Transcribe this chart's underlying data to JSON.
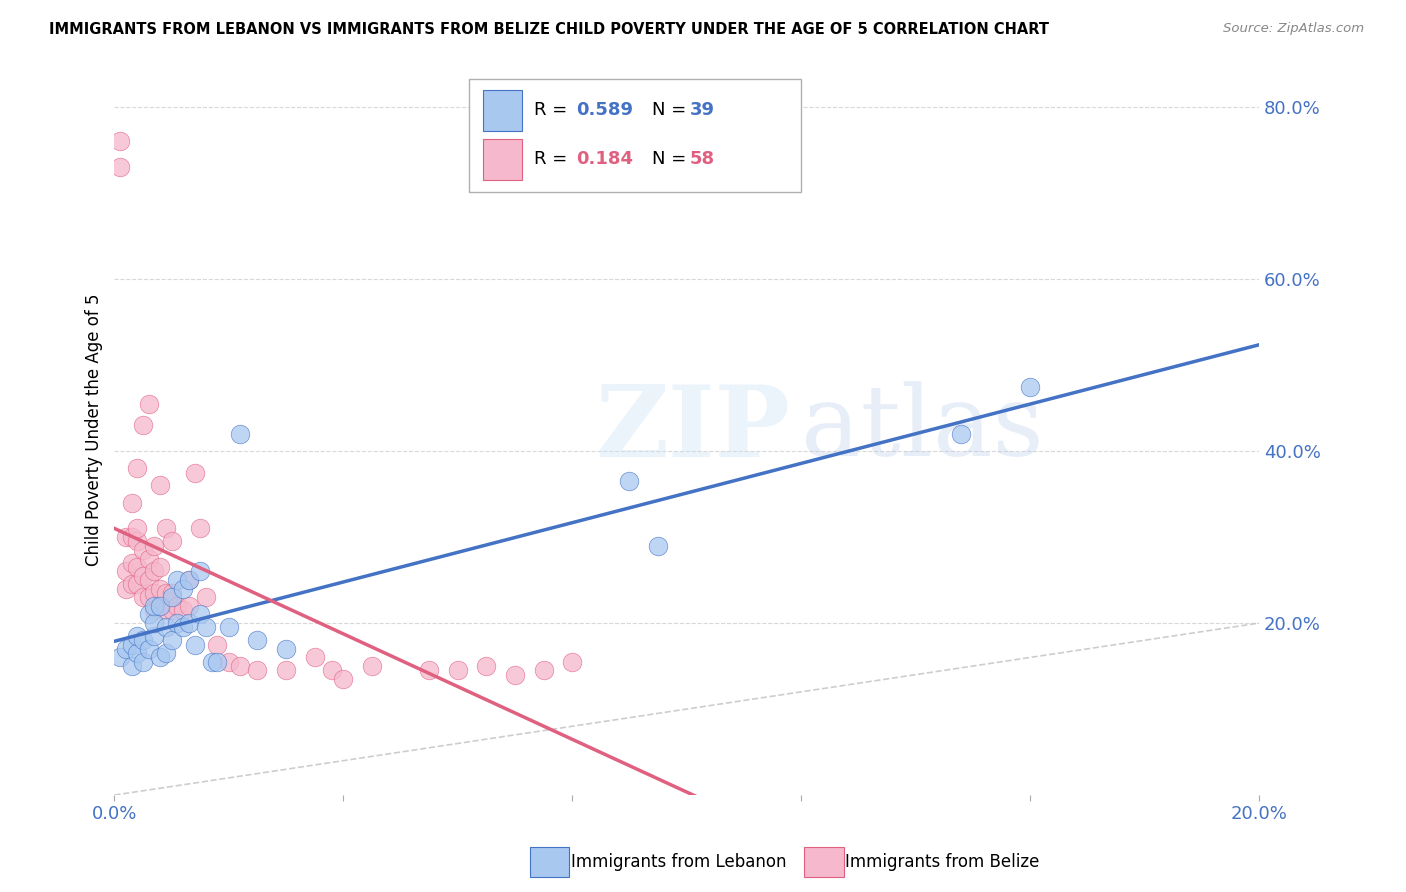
{
  "title": "IMMIGRANTS FROM LEBANON VS IMMIGRANTS FROM BELIZE CHILD POVERTY UNDER THE AGE OF 5 CORRELATION CHART",
  "source": "Source: ZipAtlas.com",
  "ylabel": "Child Poverty Under the Age of 5",
  "xlim": [
    0,
    0.2
  ],
  "ylim": [
    0,
    0.85
  ],
  "xticks": [
    0.0,
    0.04,
    0.08,
    0.12,
    0.16,
    0.2
  ],
  "yticks": [
    0.2,
    0.4,
    0.6,
    0.8
  ],
  "ytick_labels": [
    "20.0%",
    "40.0%",
    "60.0%",
    "80.0%"
  ],
  "xtick_labels": [
    "0.0%",
    "",
    "",
    "",
    "",
    "20.0%"
  ],
  "color_lebanon": "#a8c8f0",
  "color_belize": "#f5b8cc",
  "color_lebanon_line": "#4472c4",
  "color_belize_line": "#e06080",
  "color_diagonal": "#c8c8c8",
  "background": "#ffffff",
  "watermark": "ZIPatlas",
  "lebanon_x": [
    0.001,
    0.002,
    0.003,
    0.003,
    0.004,
    0.004,
    0.005,
    0.005,
    0.006,
    0.006,
    0.007,
    0.007,
    0.007,
    0.008,
    0.008,
    0.009,
    0.009,
    0.01,
    0.01,
    0.011,
    0.011,
    0.012,
    0.012,
    0.013,
    0.013,
    0.014,
    0.015,
    0.015,
    0.016,
    0.017,
    0.018,
    0.02,
    0.022,
    0.025,
    0.03,
    0.09,
    0.095,
    0.148,
    0.16
  ],
  "lebanon_y": [
    0.16,
    0.17,
    0.15,
    0.175,
    0.165,
    0.185,
    0.155,
    0.18,
    0.17,
    0.21,
    0.185,
    0.2,
    0.22,
    0.16,
    0.22,
    0.165,
    0.195,
    0.18,
    0.23,
    0.2,
    0.25,
    0.195,
    0.24,
    0.2,
    0.25,
    0.175,
    0.21,
    0.26,
    0.195,
    0.155,
    0.155,
    0.195,
    0.42,
    0.18,
    0.17,
    0.365,
    0.29,
    0.42,
    0.475
  ],
  "belize_x": [
    0.001,
    0.001,
    0.002,
    0.002,
    0.002,
    0.003,
    0.003,
    0.003,
    0.004,
    0.004,
    0.004,
    0.004,
    0.005,
    0.005,
    0.005,
    0.006,
    0.006,
    0.006,
    0.007,
    0.007,
    0.007,
    0.008,
    0.008,
    0.008,
    0.009,
    0.009,
    0.01,
    0.01,
    0.011,
    0.012,
    0.013,
    0.013,
    0.014,
    0.015,
    0.016,
    0.018,
    0.02,
    0.022,
    0.025,
    0.03,
    0.035,
    0.038,
    0.04,
    0.045,
    0.055,
    0.06,
    0.065,
    0.07,
    0.075,
    0.08,
    0.003,
    0.004,
    0.005,
    0.006,
    0.007,
    0.008,
    0.009,
    0.01
  ],
  "belize_y": [
    0.73,
    0.76,
    0.24,
    0.26,
    0.3,
    0.245,
    0.27,
    0.3,
    0.245,
    0.265,
    0.295,
    0.31,
    0.23,
    0.255,
    0.285,
    0.23,
    0.25,
    0.275,
    0.215,
    0.235,
    0.26,
    0.22,
    0.24,
    0.265,
    0.215,
    0.235,
    0.215,
    0.235,
    0.22,
    0.215,
    0.22,
    0.25,
    0.375,
    0.31,
    0.23,
    0.175,
    0.155,
    0.15,
    0.145,
    0.145,
    0.16,
    0.145,
    0.135,
    0.15,
    0.145,
    0.145,
    0.15,
    0.14,
    0.145,
    0.155,
    0.34,
    0.38,
    0.43,
    0.455,
    0.29,
    0.36,
    0.31,
    0.295
  ]
}
